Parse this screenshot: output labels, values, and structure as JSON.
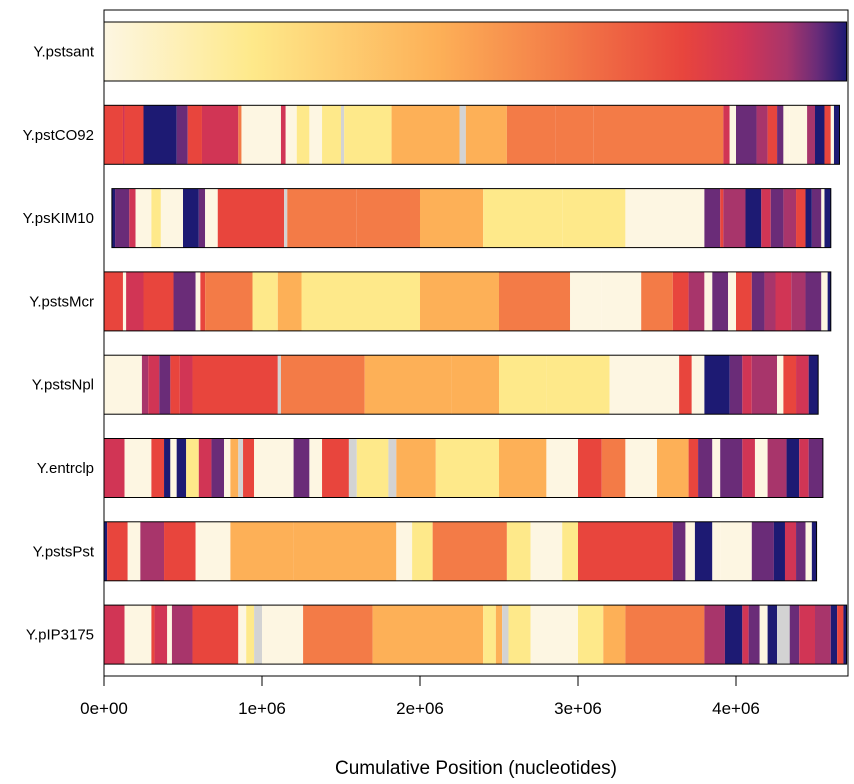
{
  "chart_data": {
    "type": "heatmap",
    "xlabel": "Cumulative Position (nucleotides)",
    "ylabel": "",
    "xlim": [
      0,
      4700000
    ],
    "xticks": [
      0,
      1000000,
      2000000,
      3000000,
      4000000
    ],
    "xtick_labels": [
      "0e+00",
      "1e+06",
      "2e+06",
      "3e+06",
      "4e+06"
    ],
    "grid": false,
    "legend": "none",
    "palette": [
      "#fdf6e2",
      "#fee98a",
      "#fdb057",
      "#f37b47",
      "#e8453d",
      "#d13555",
      "#a8356b",
      "#6a2c78",
      "#1d1a73"
    ],
    "gap_color": "#d3d3d3",
    "genomes": [
      {
        "name": "Y.pstsant",
        "end": 4700000,
        "gradient": true,
        "segments": []
      },
      {
        "name": "Y.pstCO92",
        "end": 4655000,
        "gradient": false,
        "segments": [
          [
            0,
            120000,
            4
          ],
          [
            120000,
            130000,
            5
          ],
          [
            130000,
            250000,
            4
          ],
          [
            250000,
            460000,
            8
          ],
          [
            460000,
            530000,
            7
          ],
          [
            530000,
            620000,
            4
          ],
          [
            620000,
            850000,
            5
          ],
          [
            850000,
            870000,
            3
          ],
          [
            870000,
            1120000,
            0
          ],
          [
            1120000,
            1150000,
            5
          ],
          [
            1150000,
            1220000,
            0
          ],
          [
            1220000,
            1300000,
            1
          ],
          [
            1300000,
            1380000,
            0
          ],
          [
            1380000,
            1500000,
            1
          ],
          [
            1500000,
            1520000,
            -1
          ],
          [
            1520000,
            1820000,
            1
          ],
          [
            1820000,
            2000000,
            2
          ],
          [
            2000000,
            2250000,
            2
          ],
          [
            2250000,
            2290000,
            -1
          ],
          [
            2290000,
            2550000,
            2
          ],
          [
            2550000,
            2860000,
            3
          ],
          [
            2860000,
            3100000,
            3
          ],
          [
            3100000,
            3500000,
            3
          ],
          [
            3500000,
            3920000,
            3
          ],
          [
            3920000,
            3960000,
            5
          ],
          [
            3960000,
            4000000,
            0
          ],
          [
            4000000,
            4130000,
            7
          ],
          [
            4130000,
            4200000,
            6
          ],
          [
            4200000,
            4260000,
            4
          ],
          [
            4260000,
            4300000,
            7
          ],
          [
            4300000,
            4340000,
            0
          ],
          [
            4340000,
            4450000,
            0
          ],
          [
            4450000,
            4500000,
            6
          ],
          [
            4500000,
            4560000,
            8
          ],
          [
            4560000,
            4600000,
            4
          ],
          [
            4600000,
            4620000,
            0
          ],
          [
            4620000,
            4655000,
            8
          ]
        ]
      },
      {
        "name": "Y.psKIM10",
        "end": 4600000,
        "gradient": false,
        "segments": [
          [
            50000,
            70000,
            8
          ],
          [
            70000,
            160000,
            7
          ],
          [
            160000,
            200000,
            5
          ],
          [
            200000,
            300000,
            0
          ],
          [
            300000,
            360000,
            1
          ],
          [
            360000,
            500000,
            0
          ],
          [
            500000,
            600000,
            8
          ],
          [
            600000,
            640000,
            7
          ],
          [
            640000,
            720000,
            0
          ],
          [
            720000,
            1140000,
            4
          ],
          [
            1140000,
            1160000,
            -1
          ],
          [
            1160000,
            1600000,
            3
          ],
          [
            1600000,
            2000000,
            3
          ],
          [
            2000000,
            2400000,
            2
          ],
          [
            2400000,
            2900000,
            1
          ],
          [
            2900000,
            3300000,
            1
          ],
          [
            3300000,
            3800000,
            0
          ],
          [
            3800000,
            3900000,
            7
          ],
          [
            3900000,
            3920000,
            4
          ],
          [
            3920000,
            4060000,
            6
          ],
          [
            4060000,
            4160000,
            8
          ],
          [
            4160000,
            4220000,
            5
          ],
          [
            4220000,
            4300000,
            7
          ],
          [
            4300000,
            4380000,
            6
          ],
          [
            4380000,
            4440000,
            4
          ],
          [
            4440000,
            4480000,
            8
          ],
          [
            4480000,
            4540000,
            7
          ],
          [
            4540000,
            4560000,
            0
          ],
          [
            4560000,
            4600000,
            8
          ]
        ]
      },
      {
        "name": "Y.pstsMcr",
        "end": 4600000,
        "gradient": false,
        "segments": [
          [
            0,
            120000,
            4
          ],
          [
            120000,
            140000,
            0
          ],
          [
            140000,
            250000,
            5
          ],
          [
            250000,
            440000,
            4
          ],
          [
            440000,
            580000,
            7
          ],
          [
            580000,
            610000,
            0
          ],
          [
            610000,
            640000,
            4
          ],
          [
            640000,
            940000,
            3
          ],
          [
            940000,
            1100000,
            1
          ],
          [
            1100000,
            1250000,
            2
          ],
          [
            1250000,
            1500000,
            1
          ],
          [
            1500000,
            2000000,
            1
          ],
          [
            2000000,
            2500000,
            2
          ],
          [
            2500000,
            2950000,
            3
          ],
          [
            2950000,
            3150000,
            0
          ],
          [
            3150000,
            3400000,
            0
          ],
          [
            3400000,
            3600000,
            3
          ],
          [
            3600000,
            3700000,
            4
          ],
          [
            3700000,
            3800000,
            6
          ],
          [
            3800000,
            3850000,
            0
          ],
          [
            3850000,
            3950000,
            7
          ],
          [
            3950000,
            4000000,
            0
          ],
          [
            4000000,
            4100000,
            4
          ],
          [
            4100000,
            4180000,
            7
          ],
          [
            4180000,
            4250000,
            6
          ],
          [
            4250000,
            4350000,
            5
          ],
          [
            4350000,
            4440000,
            6
          ],
          [
            4440000,
            4540000,
            7
          ],
          [
            4540000,
            4580000,
            0
          ],
          [
            4580000,
            4600000,
            8
          ]
        ]
      },
      {
        "name": "Y.pstsNpl",
        "end": 4520000,
        "gradient": false,
        "segments": [
          [
            0,
            240000,
            0
          ],
          [
            240000,
            280000,
            6
          ],
          [
            280000,
            350000,
            5
          ],
          [
            350000,
            420000,
            7
          ],
          [
            420000,
            480000,
            4
          ],
          [
            480000,
            560000,
            5
          ],
          [
            560000,
            1100000,
            4
          ],
          [
            1100000,
            1120000,
            -1
          ],
          [
            1120000,
            1650000,
            3
          ],
          [
            1650000,
            2200000,
            2
          ],
          [
            2200000,
            2500000,
            2
          ],
          [
            2500000,
            2800000,
            1
          ],
          [
            2800000,
            3200000,
            1
          ],
          [
            3200000,
            3640000,
            0
          ],
          [
            3640000,
            3720000,
            4
          ],
          [
            3720000,
            3800000,
            0
          ],
          [
            3800000,
            3960000,
            8
          ],
          [
            3960000,
            4040000,
            7
          ],
          [
            4040000,
            4100000,
            5
          ],
          [
            4100000,
            4260000,
            6
          ],
          [
            4260000,
            4300000,
            0
          ],
          [
            4300000,
            4380000,
            4
          ],
          [
            4380000,
            4460000,
            5
          ],
          [
            4460000,
            4520000,
            8
          ]
        ]
      },
      {
        "name": "Y.entrclp",
        "end": 4550000,
        "gradient": false,
        "segments": [
          [
            0,
            130000,
            5
          ],
          [
            130000,
            300000,
            0
          ],
          [
            300000,
            380000,
            4
          ],
          [
            380000,
            420000,
            8
          ],
          [
            420000,
            460000,
            0
          ],
          [
            460000,
            520000,
            8
          ],
          [
            520000,
            600000,
            1
          ],
          [
            600000,
            680000,
            5
          ],
          [
            680000,
            760000,
            7
          ],
          [
            760000,
            800000,
            0
          ],
          [
            800000,
            850000,
            2
          ],
          [
            850000,
            880000,
            -1
          ],
          [
            880000,
            950000,
            4
          ],
          [
            950000,
            1200000,
            0
          ],
          [
            1200000,
            1300000,
            7
          ],
          [
            1300000,
            1380000,
            0
          ],
          [
            1380000,
            1550000,
            4
          ],
          [
            1550000,
            1600000,
            -1
          ],
          [
            1600000,
            1800000,
            1
          ],
          [
            1800000,
            1850000,
            -1
          ],
          [
            1850000,
            2100000,
            2
          ],
          [
            2100000,
            2500000,
            1
          ],
          [
            2500000,
            2800000,
            2
          ],
          [
            2800000,
            3000000,
            0
          ],
          [
            3000000,
            3150000,
            4
          ],
          [
            3150000,
            3300000,
            3
          ],
          [
            3300000,
            3500000,
            0
          ],
          [
            3500000,
            3700000,
            2
          ],
          [
            3700000,
            3760000,
            4
          ],
          [
            3760000,
            3850000,
            7
          ],
          [
            3850000,
            3900000,
            0
          ],
          [
            3900000,
            4040000,
            7
          ],
          [
            4040000,
            4120000,
            5
          ],
          [
            4120000,
            4200000,
            0
          ],
          [
            4200000,
            4320000,
            6
          ],
          [
            4320000,
            4400000,
            8
          ],
          [
            4400000,
            4460000,
            5
          ],
          [
            4460000,
            4550000,
            7
          ]
        ]
      },
      {
        "name": "Y.pstsPst",
        "end": 4510000,
        "gradient": false,
        "segments": [
          [
            0,
            20000,
            8
          ],
          [
            20000,
            150000,
            4
          ],
          [
            150000,
            230000,
            0
          ],
          [
            230000,
            380000,
            6
          ],
          [
            380000,
            580000,
            4
          ],
          [
            580000,
            800000,
            0
          ],
          [
            800000,
            1200000,
            2
          ],
          [
            1200000,
            1500000,
            2
          ],
          [
            1500000,
            1850000,
            2
          ],
          [
            1850000,
            1950000,
            0
          ],
          [
            1950000,
            2080000,
            1
          ],
          [
            2080000,
            2550000,
            3
          ],
          [
            2550000,
            2700000,
            1
          ],
          [
            2700000,
            2900000,
            0
          ],
          [
            2900000,
            3000000,
            1
          ],
          [
            3000000,
            3500000,
            4
          ],
          [
            3500000,
            3600000,
            4
          ],
          [
            3600000,
            3680000,
            7
          ],
          [
            3680000,
            3740000,
            0
          ],
          [
            3740000,
            3850000,
            8
          ],
          [
            3850000,
            3900000,
            0
          ],
          [
            3900000,
            4100000,
            0
          ],
          [
            4100000,
            4240000,
            7
          ],
          [
            4240000,
            4310000,
            8
          ],
          [
            4310000,
            4380000,
            5
          ],
          [
            4380000,
            4440000,
            7
          ],
          [
            4440000,
            4480000,
            0
          ],
          [
            4480000,
            4510000,
            8
          ]
        ]
      },
      {
        "name": "Y.pIP3175",
        "end": 4700000,
        "gradient": false,
        "segments": [
          [
            0,
            130000,
            5
          ],
          [
            130000,
            300000,
            0
          ],
          [
            300000,
            320000,
            4
          ],
          [
            320000,
            400000,
            5
          ],
          [
            400000,
            430000,
            0
          ],
          [
            430000,
            560000,
            6
          ],
          [
            560000,
            850000,
            4
          ],
          [
            850000,
            900000,
            0
          ],
          [
            900000,
            950000,
            1
          ],
          [
            950000,
            1000000,
            -1
          ],
          [
            1000000,
            1260000,
            0
          ],
          [
            1260000,
            1700000,
            3
          ],
          [
            1700000,
            2000000,
            2
          ],
          [
            2000000,
            2400000,
            2
          ],
          [
            2400000,
            2480000,
            1
          ],
          [
            2480000,
            2520000,
            2
          ],
          [
            2520000,
            2560000,
            -1
          ],
          [
            2560000,
            2700000,
            1
          ],
          [
            2700000,
            3000000,
            0
          ],
          [
            3000000,
            3160000,
            1
          ],
          [
            3160000,
            3300000,
            2
          ],
          [
            3300000,
            3800000,
            3
          ],
          [
            3800000,
            3930000,
            6
          ],
          [
            3930000,
            4040000,
            8
          ],
          [
            4040000,
            4080000,
            5
          ],
          [
            4080000,
            4150000,
            7
          ],
          [
            4150000,
            4200000,
            0
          ],
          [
            4200000,
            4260000,
            8
          ],
          [
            4260000,
            4340000,
            -1
          ],
          [
            4340000,
            4400000,
            7
          ],
          [
            4400000,
            4500000,
            5
          ],
          [
            4500000,
            4600000,
            6
          ],
          [
            4600000,
            4640000,
            8
          ],
          [
            4640000,
            4680000,
            4
          ],
          [
            4680000,
            4700000,
            8
          ]
        ]
      }
    ]
  }
}
